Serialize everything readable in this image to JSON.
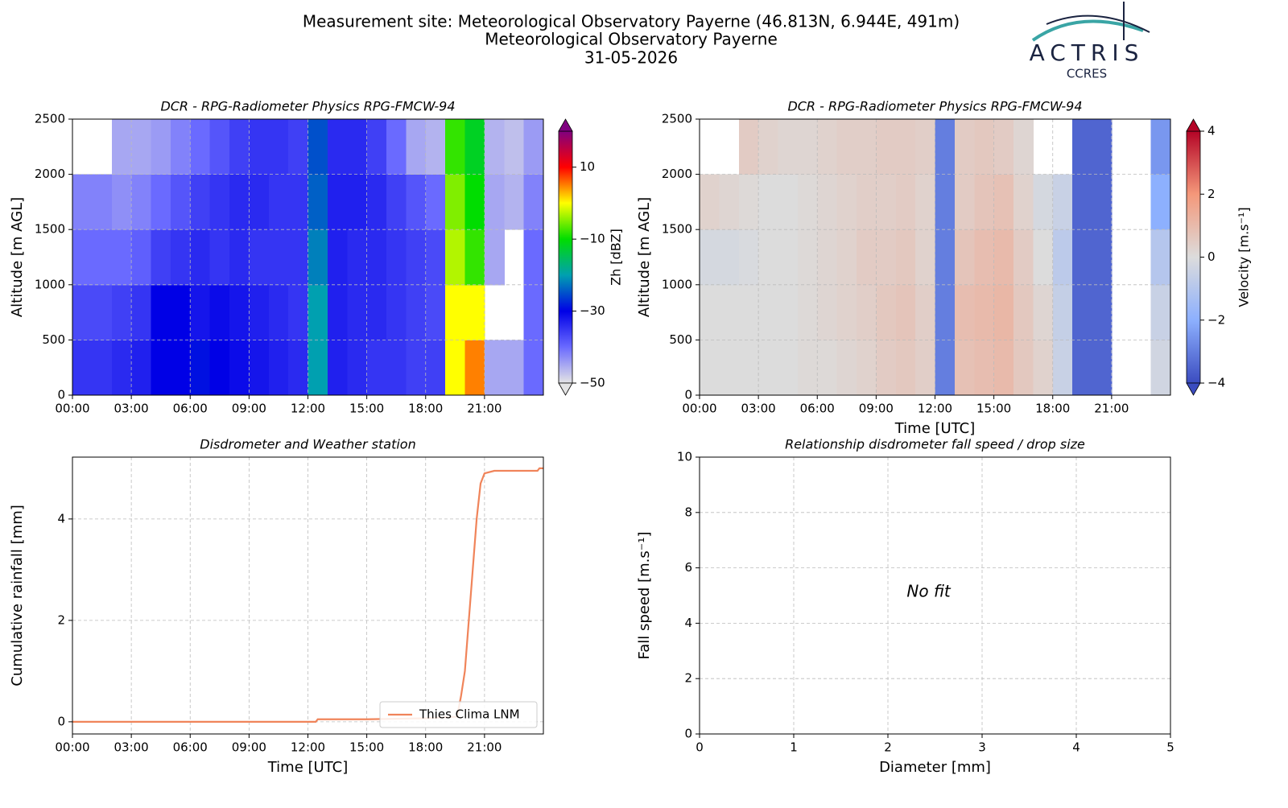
{
  "header": [
    "Measurement site: Meteorological Observatory Payerne (46.813N, 6.944E, 491m)",
    "Meteorological Observatory Payerne",
    "31-05-2026"
  ],
  "logo": {
    "text": "ACTRIS",
    "subtext": "CCRES"
  },
  "chart_data": [
    {
      "type": "heatmap",
      "title": "DCR - RPG-Radiometer Physics RPG-FMCW-94",
      "ylabel": "Altitude [m AGL]",
      "x_edges": [
        0,
        1,
        2,
        3,
        4,
        5,
        6,
        7,
        8,
        9,
        10,
        11,
        12,
        13,
        14,
        15,
        16,
        17,
        18,
        19,
        20,
        21,
        22,
        23,
        24
      ],
      "y_edges": [
        0,
        500,
        1000,
        1500,
        2000,
        2500
      ],
      "values": [
        [
          -35,
          -35,
          -34,
          -33,
          -30,
          -30,
          -29,
          -30,
          -31,
          -32,
          -33,
          -34,
          -20,
          -33,
          -34,
          -35,
          -35,
          -36,
          -36,
          0,
          5,
          -45,
          -45,
          -40
        ],
        [
          -37,
          -37,
          -36,
          -35,
          -30,
          -30,
          -32,
          -31,
          -32,
          -33,
          -34,
          -35,
          -20,
          -33,
          -34,
          -34,
          -35,
          -36,
          -37,
          0,
          0,
          null,
          null,
          -40
        ],
        [
          -40,
          -40,
          -40,
          -39,
          -36,
          -35,
          -34,
          -35,
          -34,
          -35,
          -35,
          -35,
          -22,
          -33,
          -34,
          -34,
          -35,
          -36,
          -37,
          -3,
          -8,
          -45,
          null,
          -40
        ],
        [
          -42,
          -42,
          -43,
          -42,
          -40,
          -38,
          -36,
          -35,
          -34,
          -34,
          -35,
          -35,
          -24,
          -33,
          -33,
          -34,
          -36,
          -38,
          -40,
          -5,
          -10,
          -45,
          -46,
          -42
        ],
        [
          null,
          null,
          -45,
          -45,
          -44,
          -42,
          -40,
          -38,
          -36,
          -35,
          -35,
          -36,
          -25,
          -34,
          -34,
          -36,
          -40,
          -45,
          -46,
          -8,
          -12,
          -46,
          -47,
          -44
        ]
      ],
      "xlim": [
        0,
        24
      ],
      "ylim": [
        0,
        2500
      ],
      "xticks": [
        {
          "value": 0,
          "label": "00:00"
        },
        {
          "value": 3,
          "label": "03:00"
        },
        {
          "value": 6,
          "label": "06:00"
        },
        {
          "value": 9,
          "label": "09:00"
        },
        {
          "value": 12,
          "label": "12:00"
        },
        {
          "value": 15,
          "label": "15:00"
        },
        {
          "value": 18,
          "label": "18:00"
        },
        {
          "value": 21,
          "label": "21:00"
        }
      ],
      "yticks": [
        0,
        500,
        1000,
        1500,
        2000,
        2500
      ],
      "grid": true,
      "colorbar": {
        "label": "Zh [dBZ]",
        "clim": [
          -50,
          20
        ],
        "ticks": [
          {
            "value": -50,
            "label": "−50"
          },
          {
            "value": -30,
            "label": "−30"
          },
          {
            "value": -10,
            "label": "−10"
          },
          10
        ],
        "cmap": [
          "#e4e4e4",
          "#6a6aff",
          "#0000e6",
          "#00a0b0",
          "#00dd00",
          "#ffff00",
          "#ff0000",
          "#800080"
        ]
      }
    },
    {
      "type": "heatmap",
      "title": "DCR - RPG-Radiometer Physics RPG-FMCW-94",
      "xlabel": "Time [UTC]",
      "ylabel": "Altitude [m AGL]",
      "x_edges": [
        0,
        1,
        2,
        3,
        4,
        5,
        6,
        7,
        8,
        9,
        10,
        11,
        12,
        13,
        14,
        15,
        16,
        17,
        18,
        19,
        20,
        21,
        22,
        23,
        24
      ],
      "y_edges": [
        0,
        500,
        1000,
        1500,
        2000,
        2500
      ],
      "values": [
        [
          0,
          0,
          0,
          0,
          0,
          0.1,
          0.1,
          0.2,
          0.3,
          0.5,
          0.6,
          0.4,
          -3,
          0.8,
          0.9,
          1,
          0.6,
          0.3,
          -0.5,
          -3.5,
          -3.5,
          null,
          null,
          -0.3
        ],
        [
          0,
          0,
          0,
          0,
          0,
          0.1,
          0.2,
          0.3,
          0.4,
          0.6,
          0.7,
          0.4,
          -3,
          0.9,
          1,
          1.1,
          0.6,
          0.2,
          -0.6,
          -3.5,
          -3.5,
          null,
          null,
          -0.5
        ],
        [
          -0.2,
          -0.2,
          -0.1,
          0,
          0,
          0.1,
          0.2,
          0.3,
          0.5,
          0.5,
          0.6,
          0.3,
          -3,
          0.7,
          0.9,
          1,
          0.5,
          0,
          -0.8,
          -3.5,
          -3.5,
          null,
          null,
          -1
        ],
        [
          0.3,
          0.2,
          0.1,
          0,
          0,
          0.1,
          0.2,
          0.3,
          0.4,
          0.4,
          0.5,
          0.3,
          -3,
          0.5,
          0.7,
          0.8,
          0.3,
          -0.2,
          -0.5,
          -3.5,
          -3.5,
          null,
          null,
          -2
        ],
        [
          null,
          null,
          0.5,
          0.3,
          0.2,
          0.2,
          0.3,
          0.4,
          0.4,
          0.5,
          0.5,
          0.4,
          -3,
          0.5,
          0.6,
          0.5,
          0.2,
          null,
          null,
          -3.5,
          -3.5,
          null,
          null,
          -2.5
        ]
      ],
      "xlim": [
        0,
        24
      ],
      "ylim": [
        0,
        2500
      ],
      "xticks": [
        {
          "value": 0,
          "label": "00:00"
        },
        {
          "value": 3,
          "label": "03:00"
        },
        {
          "value": 6,
          "label": "06:00"
        },
        {
          "value": 9,
          "label": "09:00"
        },
        {
          "value": 12,
          "label": "12:00"
        },
        {
          "value": 15,
          "label": "15:00"
        },
        {
          "value": 18,
          "label": "18:00"
        },
        {
          "value": 21,
          "label": "21:00"
        }
      ],
      "yticks": [
        0,
        500,
        1000,
        1500,
        2000,
        2500
      ],
      "grid": true,
      "colorbar": {
        "label": "Velocity [m.s⁻¹]",
        "clim": [
          -4,
          4
        ],
        "ticks": [
          {
            "value": -4,
            "label": "−4"
          },
          {
            "value": -2,
            "label": "−2"
          },
          0,
          2,
          4
        ],
        "cmap": [
          "#3b4cc0",
          "#8db0fe",
          "#dcdcdc",
          "#f4987a",
          "#b40426"
        ]
      }
    },
    {
      "type": "line",
      "title": "Disdrometer and Weather station",
      "xlabel": "Time [UTC]",
      "ylabel": "Cumulative rainfall [mm]",
      "x": [
        0,
        12.4,
        12.5,
        15,
        18,
        19.6,
        19.8,
        20,
        20.2,
        20.4,
        20.6,
        20.8,
        21,
        21.5,
        23.7,
        23.8,
        24
      ],
      "series": [
        {
          "name": "Thies Clima LNM",
          "color": "#f0845a",
          "values": [
            0,
            0,
            0.05,
            0.05,
            0.07,
            0.1,
            0.5,
            1.0,
            2.0,
            3.0,
            4.0,
            4.7,
            4.9,
            4.95,
            4.95,
            5.0,
            5.0
          ]
        }
      ],
      "xlim": [
        0,
        24
      ],
      "ylim": [
        -0.24,
        5.22
      ],
      "xticks": [
        {
          "value": 0,
          "label": "00:00"
        },
        {
          "value": 3,
          "label": "03:00"
        },
        {
          "value": 6,
          "label": "06:00"
        },
        {
          "value": 9,
          "label": "09:00"
        },
        {
          "value": 12,
          "label": "12:00"
        },
        {
          "value": 15,
          "label": "15:00"
        },
        {
          "value": 18,
          "label": "18:00"
        },
        {
          "value": 21,
          "label": "21:00"
        }
      ],
      "yticks": [
        0,
        2,
        4
      ],
      "grid": true,
      "legend": "lower right"
    },
    {
      "type": "empty",
      "title": "Relationship disdrometer fall speed / drop size",
      "xlabel": "Diameter [mm]",
      "ylabel": "Fall speed [m.s⁻¹]",
      "annotation": "No fit",
      "xlim": [
        0,
        5
      ],
      "ylim": [
        0,
        10
      ],
      "xticks": [
        0,
        1,
        2,
        3,
        4,
        5
      ],
      "yticks": [
        0,
        2,
        4,
        6,
        8,
        10
      ],
      "grid": true
    }
  ]
}
